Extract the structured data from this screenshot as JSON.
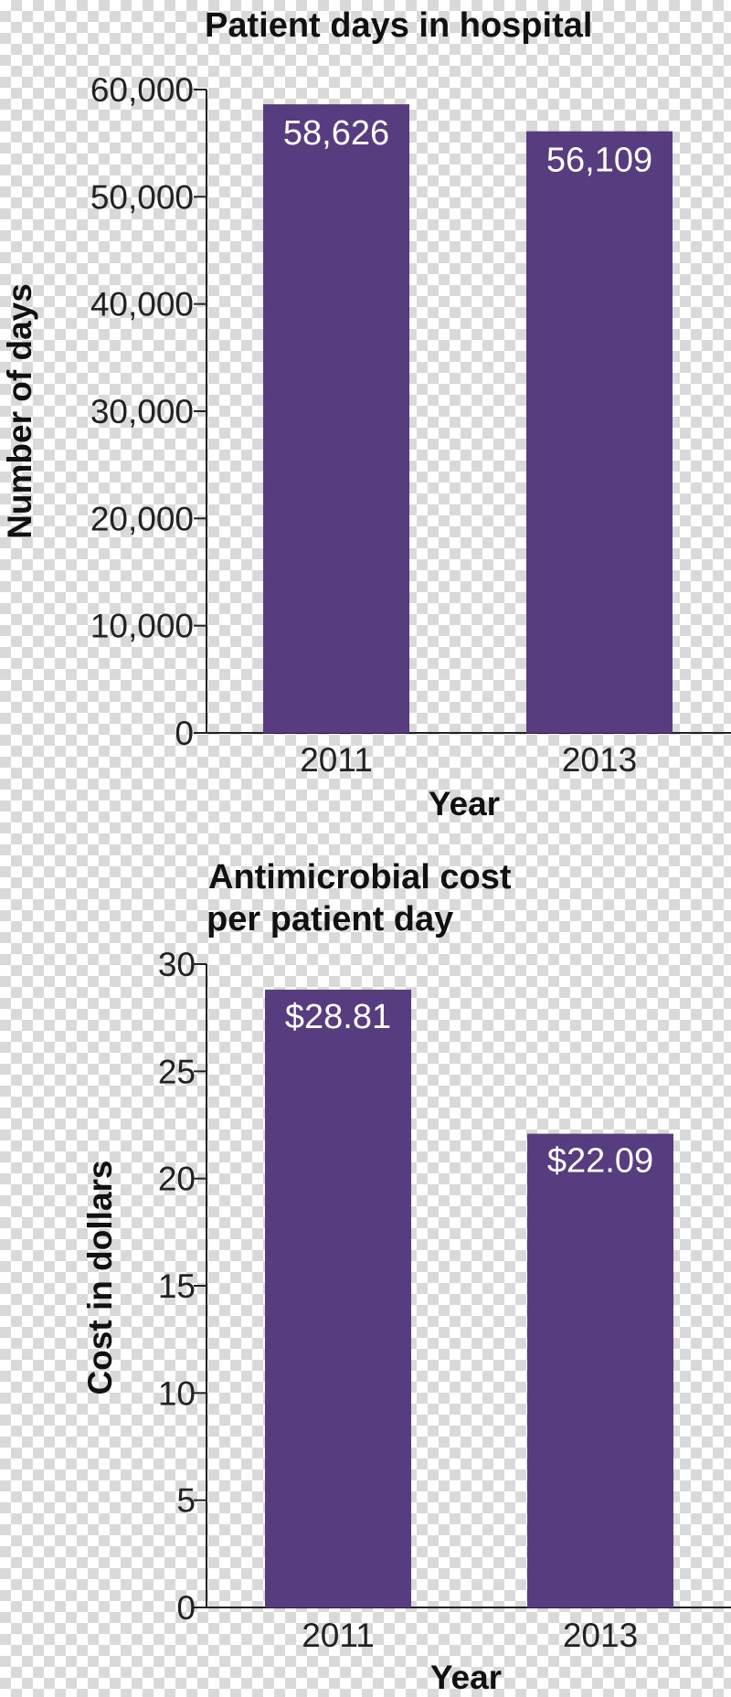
{
  "colors": {
    "bar": "#573d80",
    "axis": "#222222",
    "text": "#111111",
    "label": "#ffffff"
  },
  "chart_data": [
    {
      "type": "bar",
      "title": "Patient days in hospital",
      "xlabel": "Year",
      "ylabel": "Number of days",
      "categories": [
        "2011",
        "2013"
      ],
      "values": [
        58626,
        56109
      ],
      "value_labels": [
        "58,626",
        "56,109"
      ],
      "ylim": [
        0,
        60000
      ],
      "yticks": [
        0,
        10000,
        20000,
        30000,
        40000,
        50000,
        60000
      ],
      "ytick_labels": [
        "0",
        "10,000",
        "20,000",
        "30,000",
        "40,000",
        "50,000",
        "60,000"
      ],
      "grid": false,
      "legend": "none"
    },
    {
      "type": "bar",
      "title": "Antimicrobial cost per patient day",
      "title_lines": [
        "Antimicrobial cost",
        "per patient day"
      ],
      "xlabel": "Year",
      "ylabel": "Cost in dollars",
      "categories": [
        "2011",
        "2013"
      ],
      "values": [
        28.81,
        22.09
      ],
      "value_labels": [
        "$28.81",
        "$22.09"
      ],
      "ylim": [
        0,
        30
      ],
      "yticks": [
        0,
        5,
        10,
        15,
        20,
        25,
        30
      ],
      "ytick_labels": [
        "0",
        "5",
        "10",
        "15",
        "20",
        "25",
        "30"
      ],
      "grid": false,
      "legend": "none"
    }
  ]
}
